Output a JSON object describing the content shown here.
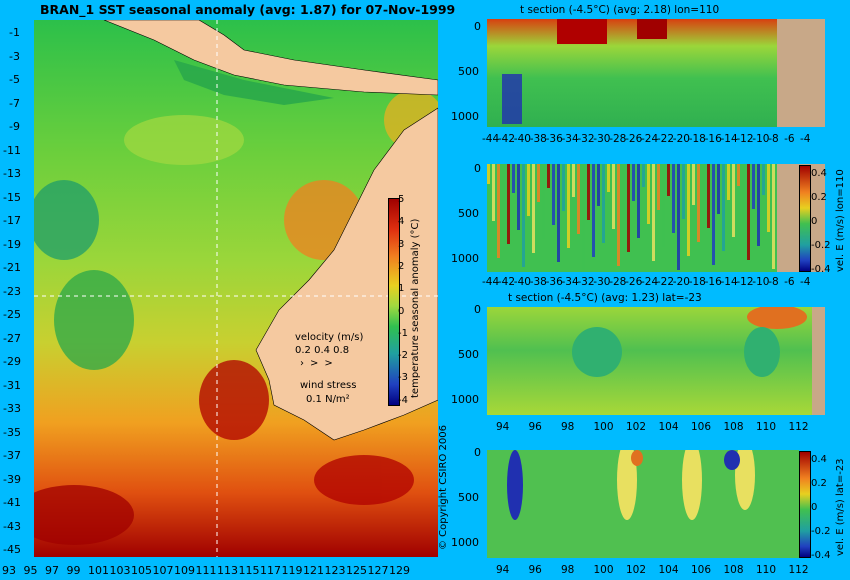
{
  "main_map": {
    "title": "BRAN_1 SST seasonal anomaly (avg: 1.87) for 07-Nov-1999",
    "lat_ticks": [
      "-1",
      "-3",
      "-5",
      "-7",
      "-9",
      "-11",
      "-13",
      "-15",
      "-17",
      "-19",
      "-21",
      "-23",
      "-25",
      "-27",
      "-29",
      "-31",
      "-33",
      "-35",
      "-37",
      "-39",
      "-41",
      "-43",
      "-45"
    ],
    "lon_ticks": [
      "93",
      "95",
      "97",
      "99",
      "101",
      "103",
      "105",
      "107",
      "109",
      "111",
      "113",
      "115",
      "117",
      "119",
      "121",
      "123",
      "125",
      "127",
      "129"
    ],
    "colorbar": {
      "label": "temperature seasonal anomaly (°C)",
      "ticks": [
        "5",
        "4",
        "3",
        "2",
        "1",
        "0",
        "-1",
        "-2",
        "-3",
        "-4"
      ]
    },
    "velocity_legend": {
      "title": "velocity (m/s)",
      "values": "0.2 0.4 0.8"
    },
    "wind_legend": {
      "title": "wind stress",
      "value": "0.1 N/m²"
    },
    "copyright": "© Copyright CSIRO 2006",
    "colors": {
      "land": "#f5c9a0",
      "warm": "#b00000",
      "cool": "#2aa84a"
    }
  },
  "panels": [
    {
      "id": "t-section-lon110",
      "title": "t section (-4.5°C) (avg: 2.18) lon=110",
      "y_ticks": [
        "0",
        "500",
        "1000"
      ],
      "x_ticks": [
        "-44",
        "-42",
        "-40",
        "-38",
        "-36",
        "-34",
        "-32",
        "-30",
        "-28",
        "-26",
        "-24",
        "-22",
        "-20",
        "-18",
        "-16",
        "-14",
        "-12",
        "-10",
        "-8",
        "-6",
        "-4"
      ]
    },
    {
      "id": "vel-e-lon110",
      "title": "",
      "y_ticks": [
        "0",
        "500",
        "1000"
      ],
      "x_ticks": [
        "-44",
        "-42",
        "-40",
        "-38",
        "-36",
        "-34",
        "-32",
        "-30",
        "-28",
        "-26",
        "-24",
        "-22",
        "-20",
        "-18",
        "-16",
        "-14",
        "-12",
        "-10",
        "-8",
        "-6",
        "-4"
      ],
      "colorbar_label": "vel. E (m/s) lon=110",
      "colorbar_ticks": [
        "0.4",
        "0.2",
        "0",
        "-0.2",
        "-0.4"
      ]
    },
    {
      "id": "t-section-lat-23",
      "title": "t section (-4.5°C) (avg: 1.23) lat=-23",
      "y_ticks": [
        "0",
        "500",
        "1000"
      ],
      "x_ticks": [
        "94",
        "96",
        "98",
        "100",
        "102",
        "104",
        "106",
        "108",
        "110",
        "112"
      ]
    },
    {
      "id": "vel-e-lat-23",
      "title": "",
      "y_ticks": [
        "0",
        "500",
        "1000"
      ],
      "x_ticks": [
        "94",
        "96",
        "98",
        "100",
        "102",
        "104",
        "106",
        "108",
        "110",
        "112"
      ],
      "colorbar_label": "vel. E (m/s) lat=-23",
      "colorbar_ticks": [
        "0.4",
        "0.2",
        "0",
        "-0.2",
        "-0.4"
      ]
    }
  ],
  "chart_data": [
    {
      "type": "heatmap",
      "title": "BRAN_1 SST seasonal anomaly (avg: 1.87) for 07-Nov-1999",
      "xlabel": "",
      "ylabel": "",
      "xlim": [
        93,
        130
      ],
      "ylim": [
        -45,
        0
      ],
      "colorbar_range": [
        -4,
        5
      ],
      "grid": false
    },
    {
      "type": "heatmap",
      "title": "t section (-4.5°C) (avg: 2.18) lon=110",
      "xlim": [
        -45,
        -3
      ],
      "ylim": [
        1050,
        0
      ]
    },
    {
      "type": "heatmap",
      "title": "",
      "xlim": [
        -45,
        -3
      ],
      "ylim": [
        1050,
        0
      ],
      "colorbar_range": [
        -0.5,
        0.5
      ]
    },
    {
      "type": "heatmap",
      "title": "t section (-4.5°C) (avg: 1.23) lat=-23",
      "xlim": [
        93,
        114
      ],
      "ylim": [
        1050,
        0
      ]
    },
    {
      "type": "heatmap",
      "title": "",
      "xlim": [
        93,
        114
      ],
      "ylim": [
        1050,
        0
      ],
      "colorbar_range": [
        -0.5,
        0.5
      ]
    }
  ]
}
